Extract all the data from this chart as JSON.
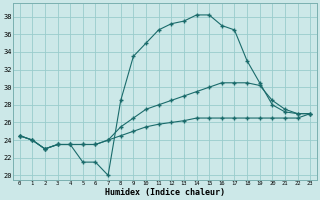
{
  "xlabel": "Humidex (Indice chaleur)",
  "bg_color": "#cce8e8",
  "line_color": "#1a6b6b",
  "grid_color": "#99cccc",
  "xlim": [
    -0.5,
    23.5
  ],
  "ylim": [
    19.5,
    39.5
  ],
  "xticks": [
    0,
    1,
    2,
    3,
    4,
    5,
    6,
    7,
    8,
    9,
    10,
    11,
    12,
    13,
    14,
    15,
    16,
    17,
    18,
    19,
    20,
    21,
    22,
    23
  ],
  "yticks": [
    20,
    22,
    24,
    26,
    28,
    30,
    32,
    34,
    36,
    38
  ],
  "series": [
    [
      24.5,
      24.0,
      23.0,
      23.5,
      23.5,
      21.5,
      21.5,
      20.0,
      28.5,
      33.5,
      35.0,
      36.5,
      37.2,
      37.5,
      38.2,
      38.2,
      37.0,
      36.5,
      33.0,
      30.5,
      28.0,
      27.2,
      27.0,
      27.0
    ],
    [
      24.5,
      24.0,
      23.0,
      23.5,
      23.5,
      23.5,
      23.5,
      24.0,
      25.5,
      26.5,
      27.5,
      28.0,
      28.5,
      29.0,
      29.5,
      30.0,
      30.5,
      30.5,
      30.5,
      30.2,
      28.5,
      27.5,
      27.0,
      27.0
    ],
    [
      24.5,
      24.0,
      23.0,
      23.5,
      23.5,
      23.5,
      23.5,
      24.0,
      24.5,
      25.0,
      25.5,
      25.8,
      26.0,
      26.2,
      26.5,
      26.5,
      26.5,
      26.5,
      26.5,
      26.5,
      26.5,
      26.5,
      26.5,
      27.0
    ]
  ]
}
